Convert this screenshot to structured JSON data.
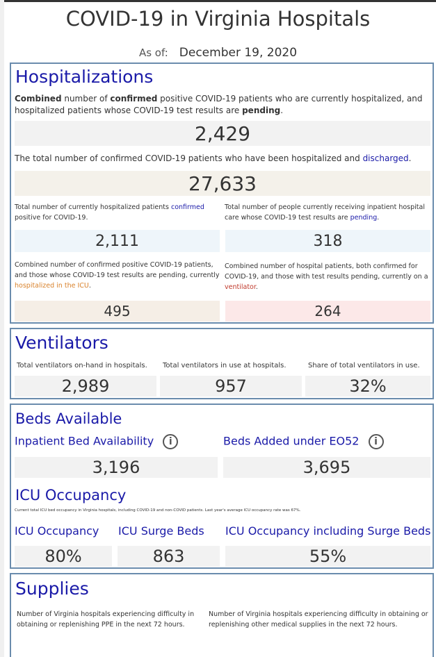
{
  "header": {
    "title": "COVID-19 in Virginia Hospitals",
    "as_of_label": "As of:",
    "as_of_date": "December 19, 2020"
  },
  "hospitalizations": {
    "title": "Hospitalizations",
    "combined_desc": {
      "t1": "Combined",
      "t2": " number of ",
      "t3": "confirmed",
      "t4": " positive COVID-19 patients who are currently hospitalized, and hospitalized patients whose COVID-19 test results are ",
      "t5": "pending",
      "t6": "."
    },
    "combined_value": "2,429",
    "discharged_desc": {
      "t1": "The total number of confirmed COVID-19 patients who have been hospitalized and ",
      "t2": "discharged",
      "t3": "."
    },
    "discharged_value": "27,633",
    "confirmed_desc": {
      "t1": "Total number of currently hospitalized patients ",
      "t2": "confirmed",
      "t3": " positive for COVID-19."
    },
    "confirmed_value": "2,111",
    "pending_desc": {
      "t1": "Total number of people currently receiving inpatient hospital care whose COVID-19 test results are ",
      "t2": "pending",
      "t3": "."
    },
    "pending_value": "318",
    "icu_desc": {
      "t1": "Combined number of confirmed positive COVID-19 patients, and those whose COVID-19 test results are pending, currently ",
      "t2": "hospitalized in the ICU",
      "t3": "."
    },
    "icu_value": "495",
    "vent_desc": {
      "t1": "Combined number of hospital patients, both confirmed for COVID-19, and those with test results pending, currently on a ",
      "t2": "ventilator",
      "t3": "."
    },
    "vent_value": "264"
  },
  "ventilators": {
    "title": "Ventilators",
    "onhand_label": "Total ventilators on-hand in hospitals.",
    "onhand_value": "2,989",
    "inuse_label": "Total ventilators in use at hospitals.",
    "inuse_value": "957",
    "share_label": "Share of total ventilators in use.",
    "share_value": "32%"
  },
  "beds": {
    "title": "Beds Available",
    "inpatient_label": "Inpatient Bed Availability",
    "inpatient_value": "3,196",
    "eo52_label": "Beds Added under EO52",
    "eo52_value": "3,695",
    "icu_title": "ICU Occupancy",
    "icu_note": "Current total ICU bed occupancy in Virginia hospitals, including COVID-19 and non-COVID patients. Last year's average ICU occupancy rate was 67%.",
    "icu_occ_label": "ICU Occupancy",
    "icu_occ_value": "80%",
    "icu_surge_label": "ICU Surge Beds",
    "icu_surge_value": "863",
    "icu_incl_label": "ICU Occupancy including Surge Beds",
    "icu_incl_value": "55%"
  },
  "supplies": {
    "title": "Supplies",
    "ppe_desc": "Number of Virginia hospitals experiencing difficulty in obtaining or replenishing PPE in the next 72 hours.",
    "other_desc": "Number of Virginia hospitals experiencing difficulty in obtaining or replenishing other medical supplies in the next 72 hours."
  },
  "icons": {
    "info": "info-icon"
  },
  "colors": {
    "accent": "#1a1aa8",
    "panel_border": "#6a8cad",
    "icu_highlight": "#d9822b",
    "vent_highlight": "#c0392b"
  }
}
